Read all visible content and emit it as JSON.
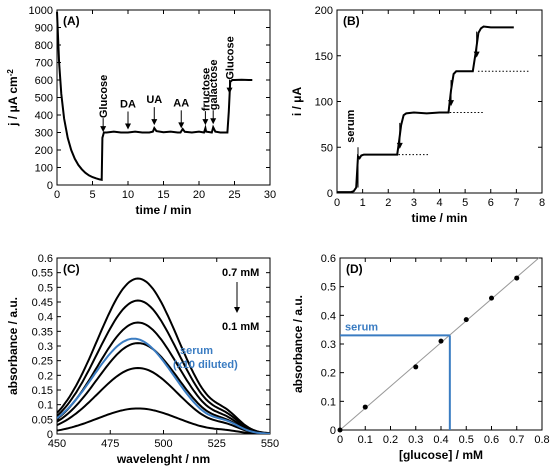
{
  "chart_data": [
    {
      "id": "A",
      "type": "line",
      "panel_label": "(A)",
      "xlabel": "time / min",
      "ylabel": "j / μA cm",
      "ylabel_sup": "-2",
      "xlim": [
        0,
        30
      ],
      "ylim": [
        0,
        1000
      ],
      "xticks": [
        0,
        5,
        10,
        15,
        20,
        25,
        30
      ],
      "yticks": [
        0,
        100,
        200,
        300,
        400,
        500,
        600,
        700,
        800,
        900,
        1000
      ],
      "series": [
        {
          "x": [
            0,
            0.3,
            0.6,
            1,
            1.5,
            2,
            2.5,
            3,
            3.5,
            4,
            4.5,
            5,
            5.5,
            6,
            6.3,
            6.4,
            6.6,
            7,
            8,
            9,
            10,
            11,
            12,
            13,
            13.5,
            13.7,
            14,
            15,
            16,
            17,
            17.4,
            17.7,
            18,
            19,
            20,
            20.7,
            20.9,
            21,
            21.8,
            22,
            22.3,
            23,
            24,
            24.2,
            24.4,
            24.7,
            25,
            26,
            27,
            27.5
          ],
          "y": [
            990,
            700,
            520,
            380,
            270,
            200,
            150,
            115,
            90,
            70,
            55,
            45,
            38,
            32,
            30,
            270,
            300,
            300,
            305,
            300,
            300,
            305,
            300,
            300,
            305,
            325,
            308,
            302,
            305,
            300,
            300,
            320,
            304,
            300,
            305,
            300,
            325,
            305,
            300,
            330,
            305,
            300,
            300,
            420,
            590,
            600,
            600,
            602,
            600,
            600
          ]
        }
      ],
      "annotations": [
        {
          "text": "Glucose",
          "x": 6.5
        },
        {
          "text": "DA",
          "x": 10
        },
        {
          "text": "UA",
          "x": 13.7
        },
        {
          "text": "AA",
          "x": 17.5
        },
        {
          "text": "fructose",
          "x": 20.9
        },
        {
          "text": "galactose",
          "x": 22
        },
        {
          "text": "Glucose",
          "x": 24.3
        }
      ]
    },
    {
      "id": "B",
      "type": "line",
      "panel_label": "(B)",
      "xlabel": "time / min",
      "ylabel": "i / μA",
      "xlim": [
        0,
        8
      ],
      "ylim": [
        0,
        200
      ],
      "xticks": [
        0,
        1,
        2,
        3,
        4,
        5,
        6,
        7,
        8
      ],
      "yticks": [
        0,
        50,
        100,
        150,
        200
      ],
      "series": [
        {
          "x": [
            0,
            0.55,
            0.65,
            0.75,
            0.82,
            0.88,
            0.95,
            1.05,
            1.5,
            2.0,
            2.35,
            2.42,
            2.5,
            2.6,
            2.7,
            3.0,
            3.5,
            4.0,
            4.35,
            4.45,
            4.55,
            4.65,
            5.0,
            5.3,
            5.42,
            5.52,
            5.62,
            5.72,
            6.0,
            6.5,
            6.9
          ],
          "y": [
            1,
            1,
            2,
            6,
            40,
            38,
            41,
            42,
            42,
            42,
            42,
            56,
            74,
            85,
            87,
            88,
            87,
            88,
            88,
            112,
            130,
            133,
            133,
            133,
            155,
            175,
            180,
            182,
            181,
            181,
            181
          ]
        }
      ],
      "dotted_levels": [
        {
          "x_start": 2.4,
          "x_end": 3.6,
          "y": 42
        },
        {
          "x_start": 4.4,
          "x_end": 5.7,
          "y": 88
        },
        {
          "x_start": 5.5,
          "x_end": 7.5,
          "y": 133
        }
      ],
      "arrows_x": [
        2.45,
        4.45,
        5.45
      ],
      "annotations": [
        {
          "text": "serum",
          "x": 0.82
        }
      ]
    },
    {
      "id": "C",
      "type": "line",
      "panel_label": "(C)",
      "xlabel": "wavelenght / nm",
      "ylabel": "absorbance / a.u.",
      "xlim": [
        450,
        550
      ],
      "ylim": [
        0,
        0.6
      ],
      "xticks": [
        450,
        475,
        500,
        525,
        550
      ],
      "yticks": [
        0,
        0.05,
        0.1,
        0.15,
        0.2,
        0.25,
        0.3,
        0.35,
        0.4,
        0.45,
        0.5,
        0.55,
        0.6
      ],
      "series": [
        {
          "name": "0.7 mM",
          "peak_nm": 488,
          "peak": 0.53
        },
        {
          "peak_nm": 488,
          "peak": 0.455
        },
        {
          "peak_nm": 488,
          "peak": 0.38
        },
        {
          "peak_nm": 488,
          "peak": 0.31
        },
        {
          "peak_nm": 488,
          "peak": 0.225
        },
        {
          "name": "0.1 mM",
          "peak_nm": 488,
          "peak": 0.087
        },
        {
          "name": "serum (x10 diluted)",
          "peak_nm": 486,
          "peak": 0.325,
          "color": "#3a7cc2"
        }
      ],
      "annotations": {
        "top": "0.7 mM",
        "bottom": "0.1 mM",
        "serum_line1": "serum",
        "serum_line2": "(x10 diluted)"
      }
    },
    {
      "id": "D",
      "type": "scatter",
      "panel_label": "(D)",
      "xlabel": "[glucose] / mM",
      "ylabel": "absorbance / a.u.",
      "xlim": [
        0,
        0.8
      ],
      "ylim": [
        0,
        0.6
      ],
      "xticks": [
        0,
        0.1,
        0.2,
        0.3,
        0.4,
        0.5,
        0.6,
        0.7,
        0.8
      ],
      "yticks": [
        0,
        0.1,
        0.2,
        0.3,
        0.4,
        0.5,
        0.6
      ],
      "points": [
        {
          "x": 0,
          "y": 0
        },
        {
          "x": 0.1,
          "y": 0.08
        },
        {
          "x": 0.3,
          "y": 0.22
        },
        {
          "x": 0.4,
          "y": 0.31
        },
        {
          "x": 0.5,
          "y": 0.385
        },
        {
          "x": 0.6,
          "y": 0.46
        },
        {
          "x": 0.7,
          "y": 0.53
        }
      ],
      "fit_line": {
        "slope": 0.762,
        "intercept": 0
      },
      "serum_marker": {
        "label": "serum",
        "x": 0.435,
        "y": 0.33,
        "color": "#3a7cc2"
      }
    }
  ]
}
